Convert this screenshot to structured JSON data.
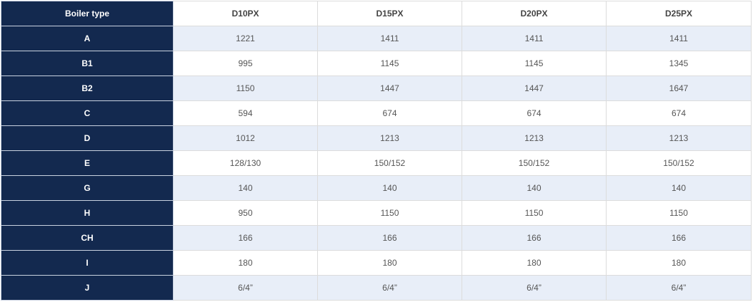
{
  "table": {
    "header": [
      "Boiler type",
      "D10PX",
      "D15PX",
      "D20PX",
      "D25PX"
    ],
    "rows": [
      [
        "A",
        1221,
        1411,
        1411,
        1411
      ],
      [
        "B1",
        995,
        1145,
        1145,
        1345
      ],
      [
        "B2",
        1150,
        1447,
        1447,
        1647
      ],
      [
        "C",
        594,
        674,
        674,
        674
      ],
      [
        "D",
        1012,
        1213,
        1213,
        1213
      ],
      [
        "E",
        "128/130",
        "150/152",
        "150/152",
        "150/152"
      ],
      [
        "G",
        140,
        140,
        140,
        140
      ],
      [
        "H",
        950,
        1150,
        1150,
        1150
      ],
      [
        "CH",
        166,
        166,
        166,
        166
      ],
      [
        "I",
        180,
        180,
        180,
        180
      ],
      [
        "J",
        "6/4”",
        "6/4”",
        "6/4”",
        "6/4”"
      ]
    ]
  }
}
